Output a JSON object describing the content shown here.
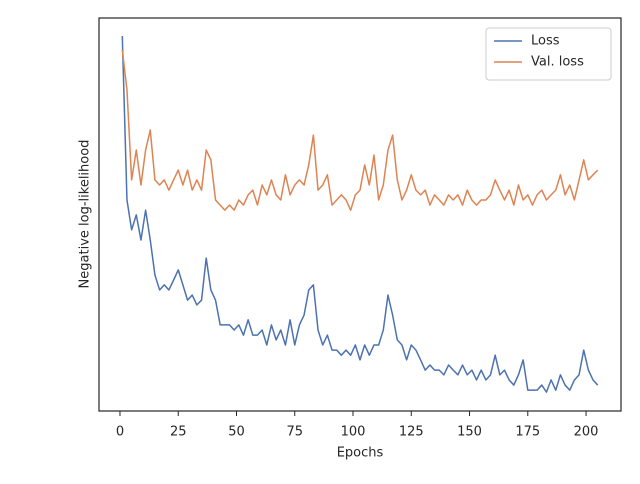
{
  "chart_data": {
    "type": "line",
    "xlabel": "Epochs",
    "ylabel": "Negative log-likelihood",
    "x": [
      1,
      3,
      5,
      7,
      9,
      11,
      13,
      15,
      17,
      19,
      21,
      23,
      25,
      27,
      29,
      31,
      33,
      35,
      37,
      39,
      41,
      43,
      45,
      47,
      49,
      51,
      53,
      55,
      57,
      59,
      61,
      63,
      65,
      67,
      69,
      71,
      73,
      75,
      77,
      79,
      81,
      83,
      85,
      87,
      89,
      91,
      93,
      95,
      97,
      99,
      101,
      103,
      105,
      107,
      109,
      111,
      113,
      115,
      117,
      119,
      121,
      123,
      125,
      127,
      129,
      131,
      133,
      135,
      137,
      139,
      141,
      143,
      145,
      147,
      149,
      151,
      153,
      155,
      157,
      159,
      161,
      163,
      165,
      167,
      169,
      171,
      173,
      175,
      177,
      179,
      181,
      183,
      185,
      187,
      189,
      191,
      193,
      195,
      197,
      199,
      201,
      203,
      205
    ],
    "series": [
      {
        "name": "Loss",
        "color": "#4c72b0",
        "values": [
          95.4,
          53.7,
          46.1,
          49.9,
          43.5,
          51.1,
          43.5,
          34.6,
          30.8,
          32.1,
          30.8,
          33.3,
          35.9,
          32.1,
          28.2,
          29.5,
          27.0,
          28.2,
          38.9,
          30.8,
          28.2,
          21.9,
          21.9,
          21.9,
          20.6,
          21.9,
          19.3,
          23.2,
          19.3,
          19.3,
          20.6,
          16.8,
          21.9,
          18.1,
          20.6,
          16.8,
          23.2,
          16.8,
          21.9,
          24.4,
          30.8,
          32.1,
          20.6,
          16.8,
          19.3,
          15.5,
          15.5,
          14.2,
          15.5,
          14.2,
          16.8,
          13.0,
          16.8,
          14.2,
          16.8,
          16.8,
          20.6,
          29.5,
          24.4,
          18.1,
          16.8,
          13.0,
          16.8,
          15.5,
          13.0,
          10.4,
          11.7,
          10.4,
          10.4,
          9.2,
          11.7,
          10.4,
          9.2,
          11.7,
          9.2,
          10.4,
          7.9,
          10.4,
          7.9,
          9.2,
          14.2,
          9.2,
          10.4,
          7.9,
          6.6,
          9.2,
          13.0,
          5.3,
          5.3,
          5.3,
          6.6,
          4.8,
          7.9,
          5.3,
          9.2,
          6.6,
          5.3,
          7.9,
          9.2,
          15.5,
          10.4,
          7.9,
          6.6
        ]
      },
      {
        "name": "Val. loss",
        "color": "#dd8452",
        "values": [
          91.9,
          81.7,
          58.8,
          66.4,
          57.5,
          66.4,
          71.5,
          58.8,
          57.5,
          58.8,
          56.2,
          58.8,
          61.3,
          57.5,
          61.3,
          56.2,
          58.8,
          56.2,
          66.4,
          63.9,
          53.7,
          52.4,
          51.1,
          52.4,
          51.1,
          53.7,
          52.4,
          55.0,
          56.2,
          52.4,
          57.5,
          55.0,
          58.8,
          55.0,
          53.7,
          60.1,
          55.0,
          57.5,
          58.8,
          57.5,
          62.6,
          70.2,
          56.2,
          57.5,
          60.1,
          52.4,
          53.7,
          55.0,
          53.7,
          51.1,
          55.0,
          56.2,
          62.6,
          57.5,
          65.1,
          53.7,
          57.5,
          66.4,
          70.2,
          58.8,
          53.7,
          56.2,
          60.1,
          56.2,
          55.0,
          56.2,
          52.4,
          55.0,
          53.7,
          52.4,
          55.0,
          53.7,
          55.0,
          52.4,
          56.2,
          53.7,
          52.4,
          53.7,
          53.7,
          55.0,
          58.8,
          56.2,
          53.7,
          56.2,
          52.4,
          57.5,
          53.7,
          55.0,
          52.4,
          55.0,
          56.2,
          53.7,
          55.0,
          56.2,
          60.1,
          55.0,
          57.5,
          53.7,
          58.8,
          63.9,
          58.8,
          60.1,
          61.3
        ]
      }
    ],
    "xlim": [
      -9,
      215
    ],
    "xticks": [
      0,
      25,
      50,
      75,
      100,
      125,
      150,
      175,
      200
    ],
    "ylim": [
      0,
      100
    ],
    "legend": "upper right"
  }
}
